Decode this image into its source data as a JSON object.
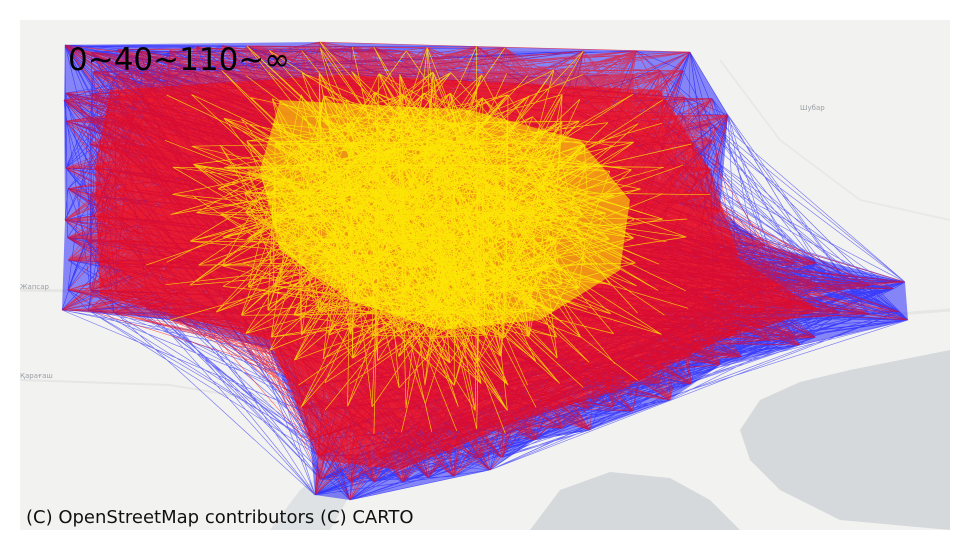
{
  "map": {
    "title": "0~40~110~∞",
    "attribution": "(C) OpenStreetMap contributors (C) CARTO",
    "basemap_labels": [
      "Шубар",
      "Жапсар",
      "Қарағаш"
    ],
    "colors": {
      "background": "#f2f2f0",
      "water": "#d5d9dc",
      "band_far": "#0000ff",
      "band_mid": "#ff0000",
      "band_near": "#ffff00"
    },
    "distance_bands": [
      {
        "range": "0~40",
        "color": "#ffff00"
      },
      {
        "range": "40~110",
        "color": "#ff0000"
      },
      {
        "range": "110~∞",
        "color": "#0000ff"
      }
    ]
  }
}
